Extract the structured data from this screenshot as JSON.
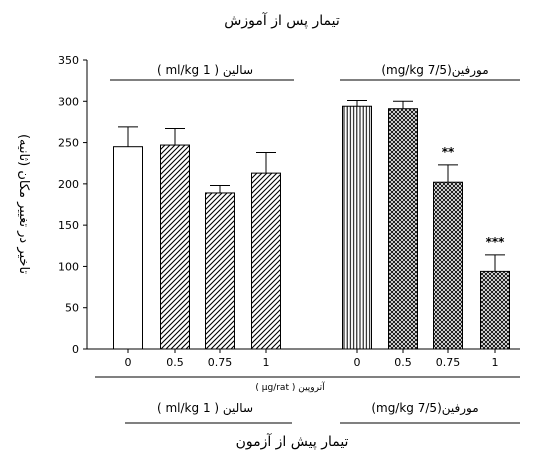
{
  "chart_data": {
    "type": "bar",
    "title_top": "تیمار پس از آموزش",
    "title_bottom": "تیمار پیش از آزمون",
    "ylabel": "تاخیر در تغییر مکان (ثانیه)",
    "ylim": [
      0,
      350
    ],
    "yticks": [
      "0",
      "50",
      "100",
      "150",
      "200",
      "250",
      "300",
      "350"
    ],
    "group_top_left": "سالین ( 1 ml/kg )",
    "group_top_right": "مورفین(7/5 mg/kg)",
    "group_bottom_left": "سالین ( 1 ml/kg )",
    "group_bottom_right": "مورفین(7/5 mg/kg)",
    "xlabel": "آتروپین ( µg/rat )",
    "bars": [
      {
        "category": "0",
        "value": 245,
        "error": 24,
        "pattern": "white",
        "sig": ""
      },
      {
        "category": "0.5",
        "value": 247,
        "error": 20,
        "pattern": "diag",
        "sig": ""
      },
      {
        "category": "0.75",
        "value": 189,
        "error": 9,
        "pattern": "diag",
        "sig": ""
      },
      {
        "category": "1",
        "value": 213,
        "error": 25,
        "pattern": "diag",
        "sig": ""
      },
      {
        "category": "0",
        "value": 294,
        "error": 7,
        "pattern": "vert",
        "sig": ""
      },
      {
        "category": "0.5",
        "value": 291,
        "error": 9,
        "pattern": "cross",
        "sig": ""
      },
      {
        "category": "0.75",
        "value": 202,
        "error": 21,
        "pattern": "cross",
        "sig": "**"
      },
      {
        "category": "1",
        "value": 94,
        "error": 20,
        "pattern": "cross",
        "sig": "***"
      }
    ]
  }
}
